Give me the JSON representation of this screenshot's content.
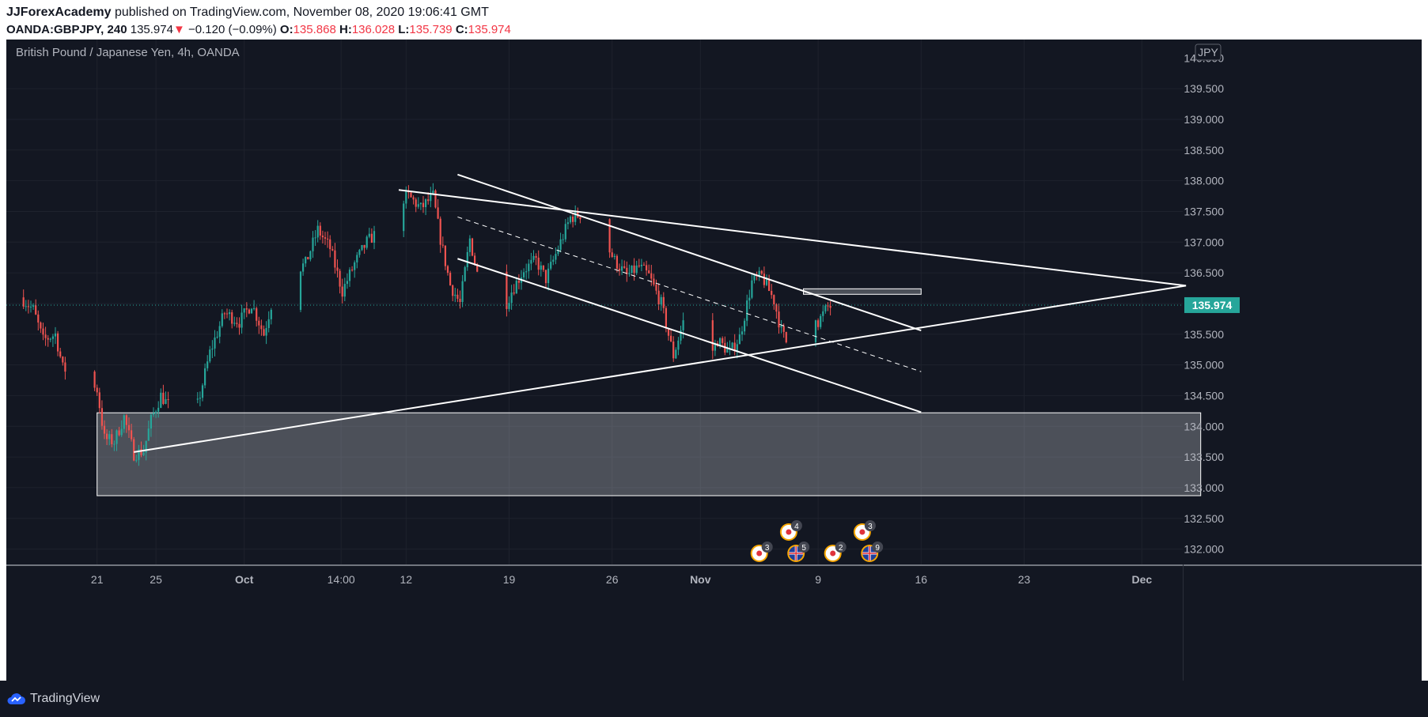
{
  "header": {
    "author": "JJForexAcademy",
    "published_text": "published on TradingView.com, November 08, 2020 19:06:41 GMT",
    "symbol": "OANDA:GBPJPY, 240",
    "last_price": "135.974",
    "change_arrow": "▼",
    "change": "−0.120 (−0.09%)",
    "o_label": "O:",
    "o_value": "135.868",
    "h_label": "H:",
    "h_value": "136.028",
    "l_label": "L:",
    "l_value": "135.739",
    "c_label": "C:",
    "c_value": "135.974"
  },
  "chart_title": "British Pound / Japanese Yen, 4h, OANDA",
  "footer": {
    "brand": "TradingView"
  },
  "colors": {
    "background": "#131722",
    "grid": "#1e222d",
    "up": "#26a69a",
    "down": "#ef5350",
    "drawing": "#ffffff",
    "price_badge": "#26a69a",
    "axis_text": "#b2b5be"
  },
  "chart_data": {
    "type": "candlestick",
    "title": "British Pound / Japanese Yen, 4h, OANDA",
    "currency": "JPY",
    "ylim": [
      131.75,
      140.3
    ],
    "y_ticks": [
      132.0,
      132.5,
      133.0,
      133.5,
      134.0,
      134.5,
      135.0,
      135.5,
      136.0,
      136.5,
      137.0,
      137.5,
      138.0,
      138.5,
      139.0,
      139.5
    ],
    "x_tick_labels": [
      "21",
      "25",
      "Oct",
      "14:00",
      "12",
      "19",
      "26",
      "Nov",
      "9",
      "16",
      "23",
      "Dec"
    ],
    "x_tick_dates": [
      "2020-09-21",
      "2020-09-25",
      "2020-10-01",
      "2020-10-07 14:00",
      "2020-10-12",
      "2020-10-19",
      "2020-10-26",
      "2020-11-01",
      "2020-11-09",
      "2020-11-16",
      "2020-11-23",
      "2020-12-01"
    ],
    "last_price": 135.974,
    "last_price_label": "135.974",
    "top_clipped_label": "140.000",
    "price_path": [
      [
        "2020-09-16 00:00",
        136.1
      ],
      [
        "2020-09-16 20:00",
        135.9
      ],
      [
        "2020-09-17 12:00",
        135.4
      ],
      [
        "2020-09-18 08:00",
        135.5
      ],
      [
        "2020-09-18 20:00",
        134.95
      ],
      [
        "2020-09-21 04:00",
        134.6
      ],
      [
        "2020-09-21 16:00",
        133.8
      ],
      [
        "2020-09-22 08:00",
        133.75
      ],
      [
        "2020-09-23 00:00",
        134.15
      ],
      [
        "2020-09-23 16:00",
        133.55
      ],
      [
        "2020-09-24 08:00",
        133.6
      ],
      [
        "2020-09-24 20:00",
        134.1
      ],
      [
        "2020-09-25 12:00",
        134.5
      ],
      [
        "2020-09-26 04:00",
        134.3
      ],
      [
        "2020-09-28 00:00",
        134.35
      ],
      [
        "2020-09-28 20:00",
        135.2
      ],
      [
        "2020-09-29 20:00",
        135.85
      ],
      [
        "2020-09-30 20:00",
        135.7
      ],
      [
        "2020-10-01 16:00",
        136.0
      ],
      [
        "2020-10-02 12:00",
        135.5
      ],
      [
        "2020-10-03 08:00",
        136.3
      ],
      [
        "2020-10-05 08:00",
        136.65
      ],
      [
        "2020-10-06 04:00",
        137.2
      ],
      [
        "2020-10-07 00:00",
        136.9
      ],
      [
        "2020-10-07 20:00",
        136.2
      ],
      [
        "2020-10-08 16:00",
        136.65
      ],
      [
        "2020-10-09 12:00",
        137.0
      ],
      [
        "2020-10-10 04:00",
        137.15
      ],
      [
        "2020-10-10 20:00",
        137.05
      ],
      [
        "2020-10-11 12:00",
        137.65
      ],
      [
        "2020-10-12 08:00",
        137.75
      ],
      [
        "2020-10-13 04:00",
        137.55
      ],
      [
        "2020-10-14 00:00",
        137.75
      ],
      [
        "2020-10-14 12:00",
        137.05
      ],
      [
        "2020-10-15 04:00",
        136.3
      ],
      [
        "2020-10-15 20:00",
        136.0
      ],
      [
        "2020-10-16 12:00",
        137.05
      ],
      [
        "2020-10-17 04:00",
        136.3
      ],
      [
        "2020-10-17 20:00",
        135.95
      ],
      [
        "2020-10-18 12:00",
        135.75
      ],
      [
        "2020-10-19 08:00",
        136.2
      ],
      [
        "2020-10-20 04:00",
        136.55
      ],
      [
        "2020-10-21 00:00",
        136.7
      ],
      [
        "2020-10-21 16:00",
        136.4
      ],
      [
        "2020-10-22 12:00",
        136.9
      ],
      [
        "2020-10-23 08:00",
        137.4
      ],
      [
        "2020-10-24 00:00",
        137.45
      ],
      [
        "2020-10-24 20:00",
        137.0
      ],
      [
        "2020-10-25 12:00",
        137.1
      ],
      [
        "2020-10-26 08:00",
        136.7
      ],
      [
        "2020-10-27 04:00",
        136.45
      ],
      [
        "2020-10-28 00:00",
        136.6
      ],
      [
        "2020-10-28 16:00",
        136.45
      ],
      [
        "2020-10-29 12:00",
        136.0
      ],
      [
        "2020-10-30 08:00",
        135.15
      ],
      [
        "2020-10-31 00:00",
        135.7
      ],
      [
        "2020-10-31 20:00",
        135.3
      ],
      [
        "2020-11-01 12:00",
        135.0
      ],
      [
        "2020-11-02 08:00",
        135.4
      ],
      [
        "2020-11-03 04:00",
        135.2
      ],
      [
        "2020-11-03 20:00",
        135.45
      ],
      [
        "2020-11-04 16:00",
        136.35
      ],
      [
        "2020-11-05 08:00",
        136.45
      ],
      [
        "2020-11-06 04:00",
        136.05
      ],
      [
        "2020-11-06 16:00",
        135.55
      ],
      [
        "2020-11-07 08:00",
        135.2
      ],
      [
        "2020-11-08 00:00",
        135.75
      ],
      [
        "2020-11-08 16:00",
        136.05
      ],
      [
        "2020-11-09 04:00",
        135.7
      ],
      [
        "2020-11-09 20:00",
        135.95
      ]
    ],
    "drawings": {
      "demand_zone": {
        "from": "2020-09-21",
        "to": "2020-12-05",
        "low": 132.87,
        "high": 134.22
      },
      "resistance_box": {
        "from": "2020-11-08",
        "to": "2020-11-16",
        "low": 136.15,
        "high": 136.24
      },
      "lines": [
        {
          "name": "lower-trendline",
          "p1": [
            "2020-09-23 12:00",
            133.58
          ],
          "p2": [
            "2020-12-04",
            136.29
          ]
        },
        {
          "name": "upper-trendline",
          "p1": [
            "2020-10-11 12:00",
            137.85
          ],
          "p2": [
            "2020-12-04",
            136.29
          ]
        },
        {
          "name": "channel-top",
          "p1": [
            "2020-10-15 12:00",
            138.1
          ],
          "p2": [
            "2020-11-16",
            135.56
          ]
        },
        {
          "name": "channel-bottom",
          "p1": [
            "2020-10-15 12:00",
            136.73
          ],
          "p2": [
            "2020-11-16",
            134.23
          ]
        },
        {
          "name": "channel-mid-dashed",
          "p1": [
            "2020-10-15 12:00",
            137.41
          ],
          "p2": [
            "2020-11-16",
            134.89
          ],
          "dashed": true
        }
      ]
    },
    "event_markers": [
      {
        "row": "upper",
        "date": "2020-11-07",
        "icon": "japan-flag-icon",
        "count": "4"
      },
      {
        "row": "upper",
        "date": "2020-11-12",
        "icon": "japan-flag-icon",
        "count": "3"
      },
      {
        "row": "lower",
        "date": "2020-11-05",
        "icon": "japan-flag-icon",
        "count": "3"
      },
      {
        "row": "lower",
        "date": "2020-11-07 12:00",
        "icon": "uk-flag-icon",
        "count": "5"
      },
      {
        "row": "lower",
        "date": "2020-11-10",
        "icon": "japan-flag-icon",
        "count": "2"
      },
      {
        "row": "lower",
        "date": "2020-11-12 12:00",
        "icon": "uk-flag-icon",
        "count": "9"
      }
    ]
  }
}
